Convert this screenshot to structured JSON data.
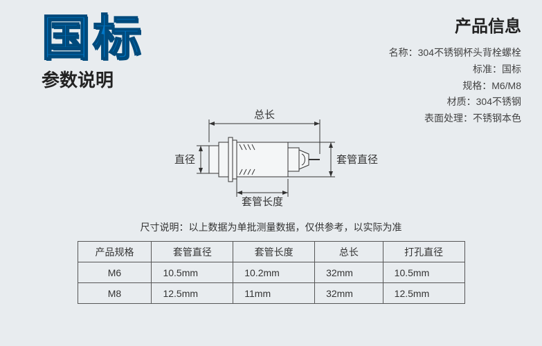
{
  "header": {
    "big_title": "国标",
    "subtitle": "参数说明"
  },
  "product_info": {
    "title": "产品信息",
    "rows": [
      {
        "label": "名称：",
        "value": "304不锈钢杯头背栓螺栓"
      },
      {
        "label": "标准：",
        "value": "国标"
      },
      {
        "label": "规格：",
        "value": "M6/M8"
      },
      {
        "label": "材质：",
        "value": "304不锈钢"
      },
      {
        "label": "表面处理：",
        "value": "不锈钢本色"
      }
    ]
  },
  "diagram": {
    "labels": {
      "total_length": "总长",
      "diameter": "直径",
      "sleeve_diameter": "套管直径",
      "sleeve_length": "套管长度"
    },
    "colors": {
      "stroke": "#333333",
      "fill": "#f4f6f7",
      "text": "#333333",
      "dim_line": "#333333"
    },
    "fontsize": 15
  },
  "note": "尺寸说明：以上数据为单批测量数据，仅供参考，以实际为准",
  "table": {
    "columns": [
      "产品规格",
      "套管直径",
      "套管长度",
      "总长",
      "打孔直径"
    ],
    "rows": [
      [
        "M6",
        "10.5mm",
        "10.2mm",
        "32mm",
        "10.5mm"
      ],
      [
        "M8",
        "12.5mm",
        "11mm",
        "32mm",
        "12.5mm"
      ]
    ],
    "column_align": [
      "center",
      "left",
      "left",
      "left",
      "left"
    ]
  }
}
